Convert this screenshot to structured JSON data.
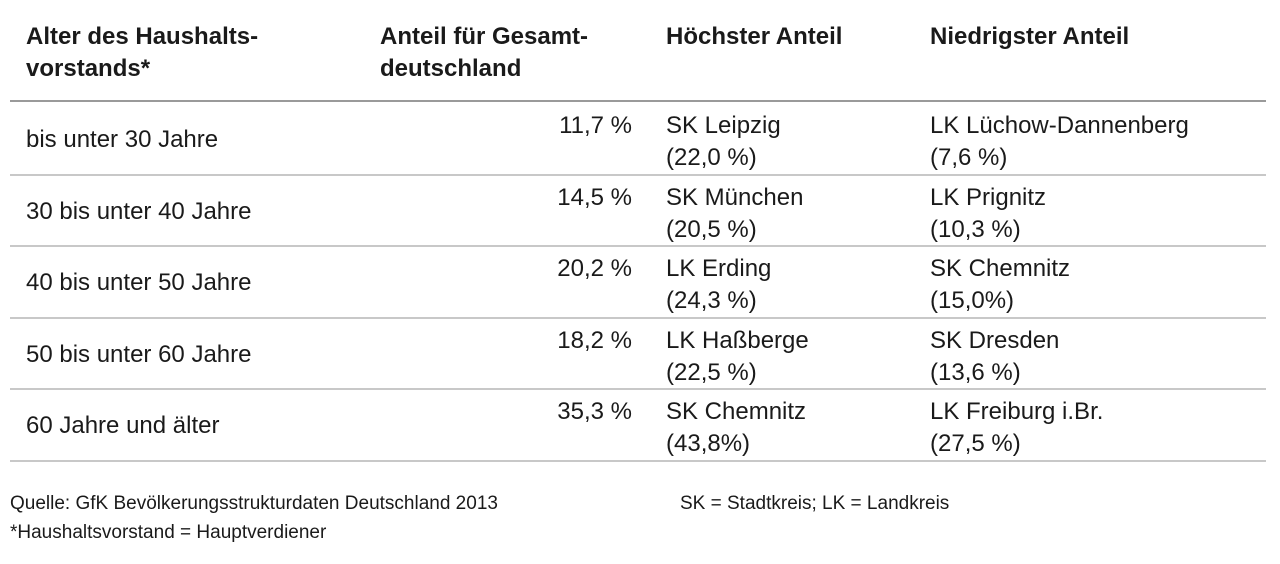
{
  "table": {
    "header": [
      [
        "Alter des Haushalts-",
        "vorstands*"
      ],
      [
        "Anteil für Gesamt-",
        "deutschland"
      ],
      [
        "Höchster Anteil"
      ],
      [
        "Niedrigster Anteil"
      ]
    ],
    "rows": [
      [
        "bis unter 30 Jahre",
        "11,7 %",
        [
          "SK Leipzig",
          "(22,0 %)"
        ],
        [
          "LK Lüchow-Dannenberg",
          "(7,6 %)"
        ]
      ],
      [
        "30 bis unter 40 Jahre",
        "14,5 %",
        [
          "SK München",
          "(20,5 %)"
        ],
        [
          "LK Prignitz",
          "(10,3 %)"
        ]
      ],
      [
        "40 bis unter 50 Jahre",
        "20,2 %",
        [
          "LK Erding",
          "(24,3 %)"
        ],
        [
          "SK Chemnitz",
          "(15,0%)"
        ]
      ],
      [
        "50 bis unter 60 Jahre",
        "18,2 %",
        [
          "LK Haßberge",
          "(22,5 %)"
        ],
        [
          "SK Dresden",
          "(13,6 %)"
        ]
      ],
      [
        "60 Jahre und älter",
        "35,3 %",
        [
          "SK Chemnitz",
          "(43,8%)"
        ],
        [
          "LK Freiburg i.Br.",
          "(27,5 %)"
        ]
      ]
    ]
  },
  "footer": {
    "source": "Quelle: GfK Bevölkerungsstrukturdaten Deutschland 2013",
    "legend": "SK = Stadtkreis; LK = Landkreis",
    "note": "*Haushaltsvorstand = Hauptverdiener"
  }
}
